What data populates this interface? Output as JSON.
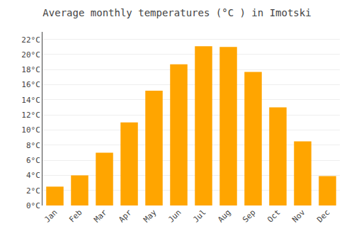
{
  "chart_data": {
    "type": "bar",
    "title": "Average monthly temperatures (°C ) in Imotski",
    "categories": [
      "Jan",
      "Feb",
      "Mar",
      "Apr",
      "May",
      "Jun",
      "Jul",
      "Aug",
      "Sep",
      "Oct",
      "Nov",
      "Dec"
    ],
    "values": [
      2.5,
      4.0,
      7.0,
      11.0,
      15.2,
      18.7,
      21.1,
      21.0,
      17.7,
      13.0,
      8.5,
      3.9
    ],
    "color": "#FFA500",
    "ylim": [
      0,
      23
    ],
    "yticks": [
      {
        "value": 0,
        "label": "0°C"
      },
      {
        "value": 2,
        "label": "2°C"
      },
      {
        "value": 4,
        "label": "4°C"
      },
      {
        "value": 6,
        "label": "6°C"
      },
      {
        "value": 8,
        "label": "8°C"
      },
      {
        "value": 10,
        "label": "10°C"
      },
      {
        "value": 12,
        "label": "12°C"
      },
      {
        "value": 14,
        "label": "14°C"
      },
      {
        "value": 16,
        "label": "16°C"
      },
      {
        "value": 18,
        "label": "18°C"
      },
      {
        "value": 20,
        "label": "20°C"
      },
      {
        "value": 22,
        "label": "22°C"
      }
    ],
    "grid": true
  }
}
